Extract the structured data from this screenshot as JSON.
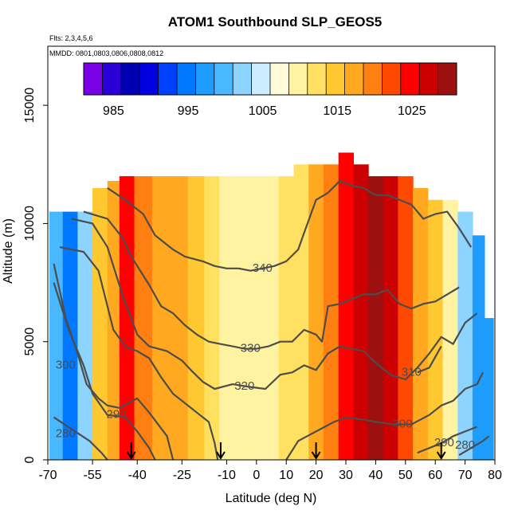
{
  "chart_data": {
    "type": "heatmap",
    "title": "ATOM1 Southbound SLP_GEOS5",
    "subtitle_flights": "Flts: 2,3,4,5,6",
    "subtitle_dates": "MMDD: 0801,0803,0806,0808,0812",
    "xlabel": "Latitude (deg N)",
    "ylabel": "Altitude (m)",
    "xlim": [
      -70,
      80
    ],
    "ylim": [
      0,
      17500
    ],
    "x_ticks": [
      -70,
      -55,
      -40,
      -25,
      -10,
      0,
      10,
      20,
      30,
      40,
      50,
      60,
      70,
      80
    ],
    "y_ticks": [
      0,
      5000,
      10000,
      15000
    ],
    "colorbar": {
      "range": [
        981,
        1031
      ],
      "tick_values": [
        985,
        995,
        1005,
        1015,
        1025
      ],
      "colors": [
        "#7a00e6",
        "#2a00d9",
        "#0000b3",
        "#0000e0",
        "#0040ff",
        "#0078ff",
        "#1e9dff",
        "#49b8ff",
        "#8dd4ff",
        "#ccecff",
        "#fffad8",
        "#fff2a0",
        "#ffe060",
        "#ffc830",
        "#ffa820",
        "#ff8010",
        "#ff4800",
        "#ff0000",
        "#cc0000",
        "#9c1010"
      ]
    },
    "sample_columns": [
      {
        "lat": -68,
        "slp": 1000,
        "top": 10500
      },
      {
        "lat": -62,
        "slp": 995,
        "top": 10500
      },
      {
        "lat": -58,
        "slp": 1002,
        "top": 10500
      },
      {
        "lat": -52,
        "slp": 1015,
        "top": 11500
      },
      {
        "lat": -48,
        "slp": 1018,
        "top": 11800
      },
      {
        "lat": -44,
        "slp": 1024,
        "top": 12000
      },
      {
        "lat": -38,
        "slp": 1020,
        "top": 12000
      },
      {
        "lat": -32,
        "slp": 1018,
        "top": 12000
      },
      {
        "lat": -26,
        "slp": 1016,
        "top": 12000
      },
      {
        "lat": -20,
        "slp": 1014,
        "top": 12000
      },
      {
        "lat": -15,
        "slp": 1012,
        "top": 12000
      },
      {
        "lat": -10,
        "slp": 1010,
        "top": 12000
      },
      {
        "lat": -5,
        "slp": 1009,
        "top": 12000
      },
      {
        "lat": 0,
        "slp": 1009,
        "top": 12000
      },
      {
        "lat": 5,
        "slp": 1010,
        "top": 12000
      },
      {
        "lat": 10,
        "slp": 1011,
        "top": 12000
      },
      {
        "lat": 15,
        "slp": 1013,
        "top": 12500
      },
      {
        "lat": 20,
        "slp": 1016,
        "top": 12500
      },
      {
        "lat": 25,
        "slp": 1019,
        "top": 12500
      },
      {
        "lat": 30,
        "slp": 1024,
        "top": 13000
      },
      {
        "lat": 35,
        "slp": 1026,
        "top": 12500
      },
      {
        "lat": 40,
        "slp": 1030,
        "top": 12000
      },
      {
        "lat": 45,
        "slp": 1028,
        "top": 12000
      },
      {
        "lat": 50,
        "slp": 1022,
        "top": 12000
      },
      {
        "lat": 55,
        "slp": 1018,
        "top": 11500
      },
      {
        "lat": 60,
        "slp": 1014,
        "top": 11000
      },
      {
        "lat": 65,
        "slp": 1010,
        "top": 11000
      },
      {
        "lat": 70,
        "slp": 1002,
        "top": 10500
      },
      {
        "lat": 75,
        "slp": 998,
        "top": 9500
      },
      {
        "lat": 78,
        "slp": 996,
        "top": 6000
      }
    ],
    "contours": [
      {
        "label": "280",
        "label_lat": -64,
        "label_alt": 1100,
        "points": [
          [
            -68,
            1800
          ],
          [
            -62,
            1300
          ],
          [
            -56,
            800
          ],
          [
            -52,
            300
          ],
          [
            -50,
            0
          ]
        ]
      },
      {
        "label": "290",
        "label_lat": -47,
        "label_alt": 1900,
        "points": [
          [
            -68,
            7500
          ],
          [
            -63,
            5500
          ],
          [
            -58,
            4000
          ],
          [
            -55,
            2800
          ],
          [
            -50,
            1900
          ],
          [
            -44,
            1800
          ],
          [
            -40,
            1200
          ],
          [
            -36,
            500
          ],
          [
            -34,
            0
          ]
        ]
      },
      {
        "label": "300",
        "label_lat": -64,
        "label_alt": 4000,
        "points": [
          [
            -68,
            8300
          ],
          [
            -64,
            6000
          ],
          [
            -60,
            4500
          ],
          [
            -57,
            3200
          ],
          [
            -53,
            2600
          ],
          [
            -50,
            2300
          ],
          [
            -46,
            2200
          ],
          [
            -40,
            2600
          ],
          [
            -36,
            2000
          ],
          [
            -30,
            1000
          ],
          [
            -28,
            0
          ]
        ]
      },
      {
        "label": "",
        "label_lat": 0,
        "label_alt": 0,
        "points": [
          [
            -66,
            9000
          ],
          [
            -58,
            8800
          ],
          [
            -53,
            8000
          ],
          [
            -48,
            5500
          ],
          [
            -44,
            4800
          ],
          [
            -40,
            4600
          ],
          [
            -36,
            4300
          ],
          [
            -32,
            3500
          ],
          [
            -28,
            2800
          ],
          [
            -24,
            2400
          ],
          [
            -20,
            2000
          ],
          [
            -16,
            1600
          ],
          [
            -14,
            700
          ],
          [
            -13,
            0
          ]
        ]
      },
      {
        "label": "320",
        "label_lat": -4,
        "label_alt": 3100,
        "points": [
          [
            -62,
            10200
          ],
          [
            -55,
            10000
          ],
          [
            -50,
            9000
          ],
          [
            -45,
            7000
          ],
          [
            -40,
            5300
          ],
          [
            -36,
            4800
          ],
          [
            -30,
            4600
          ],
          [
            -25,
            4200
          ],
          [
            -22,
            3800
          ],
          [
            -18,
            3300
          ],
          [
            -14,
            3000
          ],
          [
            -8,
            3200
          ],
          [
            -3,
            3100
          ],
          [
            3,
            3000
          ],
          [
            8,
            3600
          ],
          [
            12,
            3700
          ],
          [
            16,
            4000
          ],
          [
            20,
            3800
          ],
          [
            24,
            4500
          ],
          [
            28,
            4800
          ],
          [
            32,
            4700
          ],
          [
            36,
            4600
          ],
          [
            40,
            4100
          ],
          [
            45,
            3600
          ],
          [
            50,
            3400
          ],
          [
            54,
            3900
          ],
          [
            58,
            4500
          ],
          [
            62,
            5200
          ],
          [
            66,
            4900
          ],
          [
            70,
            5800
          ],
          [
            74,
            6200
          ]
        ]
      },
      {
        "label": "310",
        "label_lat": 52,
        "label_alt": 3700,
        "points": [
          [
            62,
            4800
          ],
          [
            58,
            3900
          ],
          [
            54,
            3700
          ]
        ]
      },
      {
        "label": "330",
        "label_lat": -2,
        "label_alt": 4700,
        "points": [
          [
            -58,
            10500
          ],
          [
            -50,
            10200
          ],
          [
            -45,
            9400
          ],
          [
            -42,
            8600
          ],
          [
            -36,
            7400
          ],
          [
            -32,
            6500
          ],
          [
            -28,
            6200
          ],
          [
            -24,
            5700
          ],
          [
            -20,
            5300
          ],
          [
            -16,
            5000
          ],
          [
            -12,
            4900
          ],
          [
            -8,
            4800
          ],
          [
            -4,
            4700
          ],
          [
            0,
            4700
          ],
          [
            4,
            4800
          ],
          [
            8,
            5000
          ],
          [
            12,
            5000
          ],
          [
            16,
            5500
          ],
          [
            20,
            5300
          ],
          [
            22,
            5000
          ],
          [
            24,
            6500
          ],
          [
            28,
            6600
          ],
          [
            32,
            6800
          ],
          [
            36,
            7000
          ],
          [
            40,
            7000
          ],
          [
            44,
            7200
          ],
          [
            48,
            6600
          ],
          [
            52,
            6400
          ],
          [
            56,
            6600
          ],
          [
            60,
            6700
          ],
          [
            64,
            7000
          ],
          [
            68,
            7300
          ]
        ]
      },
      {
        "label": "340",
        "label_lat": 2,
        "label_alt": 8100,
        "points": [
          [
            -50,
            11500
          ],
          [
            -44,
            11000
          ],
          [
            -38,
            10400
          ],
          [
            -34,
            9500
          ],
          [
            -28,
            8900
          ],
          [
            -24,
            8600
          ],
          [
            -18,
            8400
          ],
          [
            -14,
            8200
          ],
          [
            -10,
            8100
          ],
          [
            -6,
            8100
          ],
          [
            -2,
            8000
          ],
          [
            6,
            8200
          ],
          [
            10,
            8400
          ],
          [
            14,
            8900
          ],
          [
            16,
            9600
          ],
          [
            18,
            10300
          ],
          [
            20,
            11000
          ],
          [
            24,
            11300
          ],
          [
            28,
            11800
          ],
          [
            32,
            11600
          ],
          [
            36,
            11500
          ],
          [
            40,
            11200
          ],
          [
            44,
            11200
          ],
          [
            48,
            11000
          ],
          [
            52,
            10800
          ],
          [
            56,
            10200
          ],
          [
            60,
            10400
          ],
          [
            64,
            10500
          ],
          [
            68,
            9800
          ],
          [
            72,
            9000
          ]
        ]
      },
      {
        "label": "300",
        "label_lat": 49,
        "label_alt": 1500,
        "points": [
          [
            10,
            0
          ],
          [
            14,
            800
          ],
          [
            20,
            1200
          ],
          [
            26,
            1600
          ],
          [
            30,
            1800
          ],
          [
            36,
            1700
          ],
          [
            40,
            1600
          ],
          [
            46,
            1500
          ],
          [
            52,
            1500
          ],
          [
            58,
            1900
          ],
          [
            62,
            2300
          ],
          [
            66,
            2500
          ],
          [
            70,
            3000
          ],
          [
            74,
            3200
          ],
          [
            76,
            3700
          ]
        ]
      },
      {
        "label": "290",
        "label_lat": 63,
        "label_alt": 700,
        "points": [
          [
            54,
            300
          ],
          [
            58,
            500
          ],
          [
            62,
            700
          ],
          [
            66,
            1000
          ],
          [
            70,
            1200
          ],
          [
            74,
            1400
          ]
        ]
      },
      {
        "label": "280",
        "label_lat": 70,
        "label_alt": 600,
        "points": [
          [
            68,
            200
          ],
          [
            72,
            500
          ],
          [
            76,
            800
          ],
          [
            78,
            1000
          ]
        ]
      }
    ],
    "flight_markers_lat": [
      -42,
      -12,
      20,
      62
    ]
  }
}
